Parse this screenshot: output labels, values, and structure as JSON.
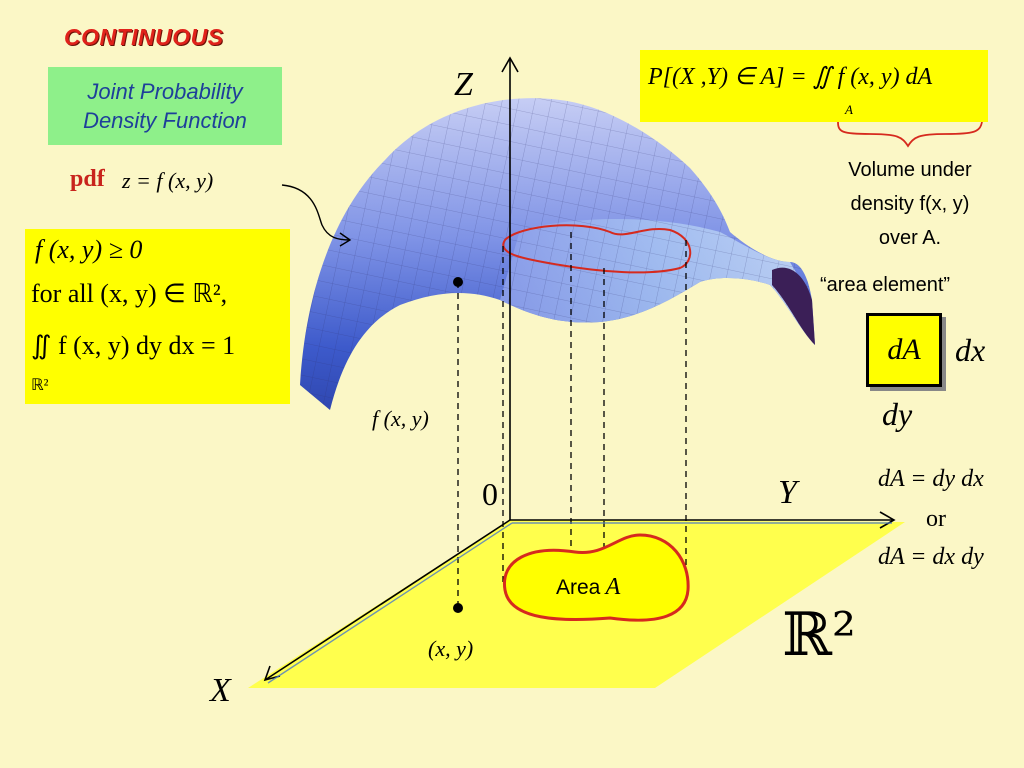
{
  "header": {
    "title": "CONTINUOUS"
  },
  "subtitle": {
    "line1": "Joint Probability",
    "line2": "Density Function"
  },
  "pdf": {
    "label": "pdf",
    "formula": "z = f (x, y)"
  },
  "conditions": {
    "line1": "f (x, y) ≥ 0",
    "line2": "for all (x, y) ∈ ℝ²,",
    "line3": "∬ f (x, y) dy dx = 1",
    "subscript": "ℝ²"
  },
  "probability": {
    "formula": "P[(X ,Y) ∈ A] = ∬ f (x, y) dA",
    "subscript": "A"
  },
  "volume_note": {
    "line1": "Volume under",
    "line2": "density f(x, y)",
    "line3": "over A."
  },
  "area_element": {
    "label": "“area element”",
    "box_label": "dA",
    "dx": "dx",
    "dy": "dy",
    "eq1": "dA = dy dx",
    "or": "or",
    "eq2": "dA = dx dy"
  },
  "axes": {
    "z": "Z",
    "y": "Y",
    "x": "X",
    "origin": "0"
  },
  "labels": {
    "fxy": "f (x, y)",
    "point": "(x, y)",
    "area": "Area",
    "area_var": "A",
    "plane": "ℝ²"
  },
  "colors": {
    "title": "#e0221b",
    "subtitle_bg": "#8ef08a",
    "subtitle_text": "#1e3f9a",
    "box": "#ffff00",
    "plane": "#ffff4d",
    "surface": "#5a74d8",
    "region_outline": "#d62a1e"
  }
}
